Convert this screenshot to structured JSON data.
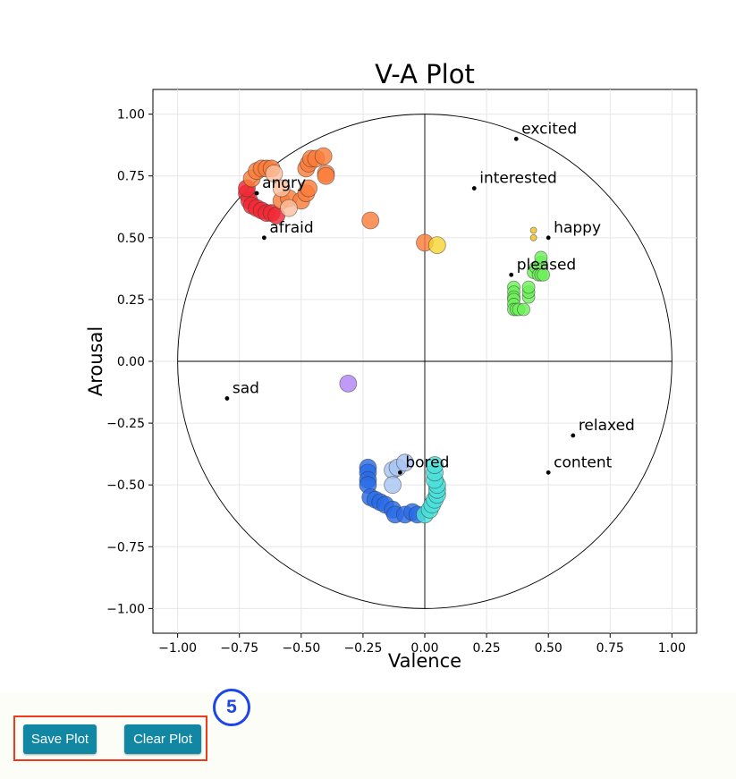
{
  "controls": {
    "save_label": "Save Plot",
    "clear_label": "Clear Plot",
    "step_number": "5"
  },
  "chart_data": {
    "type": "scatter",
    "title": "V-A Plot",
    "xlabel": "Valence",
    "ylabel": "Arousal",
    "xlim": [
      -1.1,
      1.1
    ],
    "ylim": [
      -1.1,
      1.1
    ],
    "xticks": [
      "−1.00",
      "−0.75",
      "−0.50",
      "−0.25",
      "0.00",
      "0.25",
      "0.50",
      "0.75",
      "1.00"
    ],
    "xtick_values": [
      -1.0,
      -0.75,
      -0.5,
      -0.25,
      0.0,
      0.25,
      0.5,
      0.75,
      1.0
    ],
    "yticks": [
      "1.00",
      "0.75",
      "0.50",
      "0.25",
      "0.00",
      "−0.25",
      "−0.50",
      "−0.75",
      "−1.00"
    ],
    "ytick_values": [
      1.0,
      0.75,
      0.5,
      0.25,
      0.0,
      -0.25,
      -0.5,
      -0.75,
      -1.0
    ],
    "grid": true,
    "unit_circle": true,
    "reference_points": [
      {
        "label": "excited",
        "x": 0.37,
        "y": 0.9
      },
      {
        "label": "interested",
        "x": 0.2,
        "y": 0.7
      },
      {
        "label": "happy",
        "x": 0.5,
        "y": 0.5
      },
      {
        "label": "pleased",
        "x": 0.35,
        "y": 0.35
      },
      {
        "label": "angry",
        "x": -0.68,
        "y": 0.68
      },
      {
        "label": "afraid",
        "x": -0.65,
        "y": 0.5
      },
      {
        "label": "sad",
        "x": -0.8,
        "y": -0.15
      },
      {
        "label": "relaxed",
        "x": 0.6,
        "y": -0.3
      },
      {
        "label": "content",
        "x": 0.5,
        "y": -0.45
      },
      {
        "label": "bored",
        "x": -0.1,
        "y": -0.45
      }
    ],
    "series": [
      {
        "color": "#f02a35",
        "size": "large",
        "points": [
          [
            -0.72,
            0.68
          ],
          [
            -0.71,
            0.65
          ],
          [
            -0.7,
            0.63
          ],
          [
            -0.68,
            0.62
          ],
          [
            -0.66,
            0.61
          ],
          [
            -0.64,
            0.6
          ],
          [
            -0.62,
            0.6
          ],
          [
            -0.6,
            0.59
          ],
          [
            -0.72,
            0.7
          ]
        ]
      },
      {
        "color": "#fb7d3b",
        "size": "large",
        "points": [
          [
            -0.7,
            0.74
          ],
          [
            -0.68,
            0.77
          ],
          [
            -0.66,
            0.78
          ],
          [
            -0.64,
            0.78
          ],
          [
            -0.62,
            0.78
          ],
          [
            -0.58,
            0.65
          ],
          [
            -0.55,
            0.66
          ],
          [
            -0.5,
            0.65
          ],
          [
            -0.48,
            0.68
          ],
          [
            -0.47,
            0.7
          ],
          [
            -0.48,
            0.78
          ],
          [
            -0.47,
            0.8
          ],
          [
            -0.46,
            0.82
          ],
          [
            -0.44,
            0.82
          ],
          [
            -0.41,
            0.83
          ],
          [
            -0.4,
            0.76
          ],
          [
            -0.4,
            0.75
          ],
          [
            -0.22,
            0.57
          ],
          [
            0.0,
            0.48
          ]
        ]
      },
      {
        "color": "#fcbf9e",
        "size": "large",
        "points": [
          [
            -0.61,
            0.76
          ],
          [
            -0.58,
            0.7
          ],
          [
            -0.55,
            0.62
          ]
        ]
      },
      {
        "color": "#f5d634",
        "size": "large",
        "points": [
          [
            0.05,
            0.47
          ]
        ]
      },
      {
        "color": "#f5c21c",
        "size": "small",
        "points": [
          [
            0.44,
            0.53
          ],
          [
            0.44,
            0.5
          ]
        ]
      },
      {
        "color": "#6ef05a",
        "size": "medium",
        "points": [
          [
            0.36,
            0.3
          ],
          [
            0.36,
            0.28
          ],
          [
            0.36,
            0.26
          ],
          [
            0.36,
            0.25
          ],
          [
            0.36,
            0.23
          ],
          [
            0.36,
            0.21
          ],
          [
            0.37,
            0.21
          ],
          [
            0.38,
            0.21
          ],
          [
            0.4,
            0.21
          ],
          [
            0.42,
            0.26
          ],
          [
            0.42,
            0.28
          ],
          [
            0.42,
            0.3
          ],
          [
            0.44,
            0.36
          ],
          [
            0.45,
            0.38
          ],
          [
            0.46,
            0.35
          ],
          [
            0.47,
            0.35
          ],
          [
            0.48,
            0.35
          ],
          [
            0.47,
            0.4
          ],
          [
            0.47,
            0.42
          ]
        ]
      },
      {
        "color": "#b185f5",
        "size": "large",
        "points": [
          [
            -0.31,
            -0.09
          ]
        ]
      },
      {
        "color": "#2a6be6",
        "size": "large",
        "points": [
          [
            -0.23,
            -0.43
          ],
          [
            -0.23,
            -0.45
          ],
          [
            -0.23,
            -0.48
          ],
          [
            -0.23,
            -0.5
          ],
          [
            -0.22,
            -0.55
          ],
          [
            -0.2,
            -0.56
          ],
          [
            -0.18,
            -0.57
          ],
          [
            -0.16,
            -0.58
          ],
          [
            -0.13,
            -0.6
          ],
          [
            -0.12,
            -0.62
          ],
          [
            -0.08,
            -0.62
          ],
          [
            -0.05,
            -0.61
          ],
          [
            -0.03,
            -0.62
          ]
        ]
      },
      {
        "color": "#a7c4f2",
        "size": "large",
        "points": [
          [
            -0.13,
            -0.44
          ],
          [
            -0.11,
            -0.43
          ],
          [
            -0.08,
            -0.41
          ],
          [
            -0.13,
            -0.5
          ]
        ]
      },
      {
        "color": "#4adfd9",
        "size": "large",
        "points": [
          [
            0.0,
            -0.62
          ],
          [
            0.02,
            -0.6
          ],
          [
            0.03,
            -0.58
          ],
          [
            0.04,
            -0.56
          ],
          [
            0.05,
            -0.54
          ],
          [
            0.05,
            -0.52
          ],
          [
            0.05,
            -0.5
          ],
          [
            0.04,
            -0.48
          ],
          [
            0.04,
            -0.45
          ],
          [
            0.04,
            -0.42
          ]
        ]
      }
    ]
  }
}
